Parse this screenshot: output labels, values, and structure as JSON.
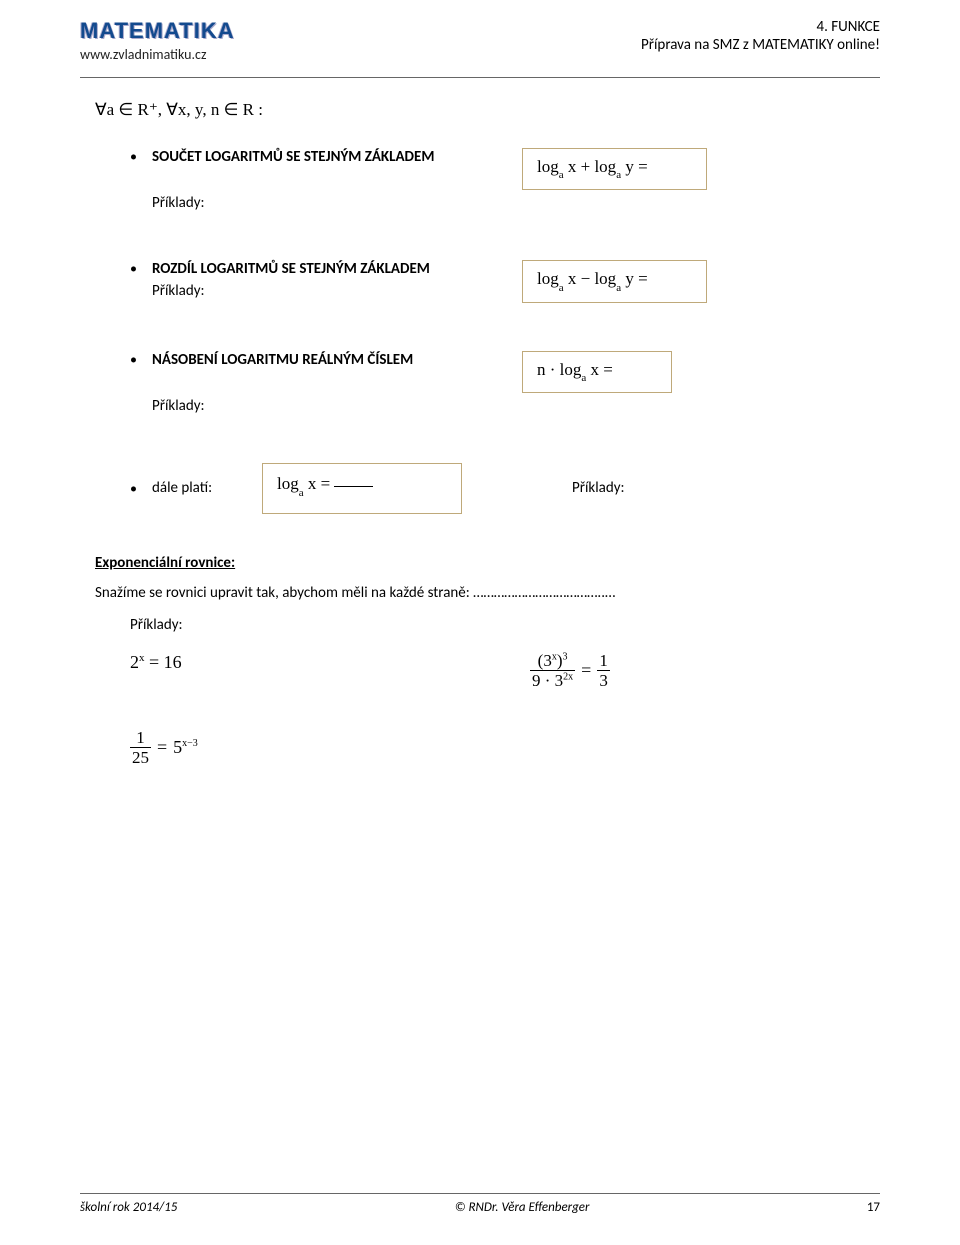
{
  "header": {
    "logo": "MATEMATIKA",
    "website": "www.zvladnimatiku.cz",
    "chapter": "4. FUNKCE",
    "subtitle": "Příprava na SMZ z MATEMATIKY online!"
  },
  "quantifier": "∀a ∈ R⁺,   ∀x, y, n ∈ R :",
  "rules": [
    {
      "title": "SOUČET LOGARITMŮ SE STEJNÝM ZÁKLADEM",
      "formula_html": "log<span class='sub'>a</span> x + log<span class='sub'>a</span> y =",
      "examples_label": "Příklady:",
      "examples_below": true,
      "box_class": ""
    },
    {
      "title": "ROZDÍL LOGARITMŮ SE STEJNÝM ZÁKLADEM",
      "formula_html": "log<span class='sub'>a</span> x − log<span class='sub'>a</span> y =",
      "examples_label": "Příklady:",
      "examples_below": false,
      "box_class": ""
    },
    {
      "title": "NÁSOBENÍ LOGARITMU REÁLNÝM ČÍSLEM",
      "formula_html": "n · log<span class='sub'>a</span> x =",
      "examples_label": "Příklady:",
      "examples_below": true,
      "box_class": "sm"
    }
  ],
  "dale": {
    "label": "dále platí:",
    "formula_html": "log<span class='sub'>a</span> x = ————",
    "examples_label": "Příklady:"
  },
  "exponential": {
    "title": "Exponenciální rovnice:",
    "text": "Snažíme se rovnici upravit tak, abychom měli na každé straně: ………………………………..…",
    "examples_label": "Příklady:",
    "eq1": "2<sup style='font-size:11px'>x</sup> = 16",
    "eq2_num": "(3<sup style='font-size:10px'>x</sup>)<sup style='font-size:10px'>3</sup>",
    "eq2_den": "9 · 3<sup style='font-size:10px'>2x</sup>",
    "eq2_rhs_num": "1",
    "eq2_rhs_den": "3",
    "eq3_lhs_num": "1",
    "eq3_lhs_den": "25",
    "eq3_rhs": "5<sup style='font-size:10px'>x−3</sup>"
  },
  "footer": {
    "left": "školní rok 2014/15",
    "center": "© RNDr. Věra Effenberger",
    "page": "17"
  },
  "colors": {
    "box_border": "#bfa97a",
    "logo": "#134a8e",
    "rule": "#666666"
  }
}
